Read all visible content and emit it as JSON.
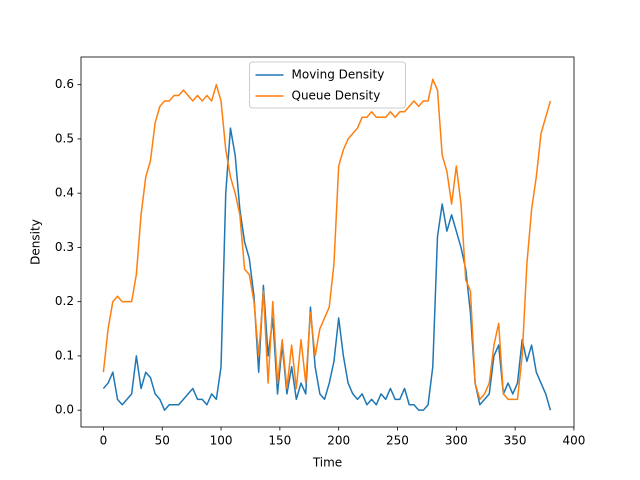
{
  "chart_data": {
    "type": "line",
    "x_label": "Time",
    "y_label": "Density",
    "x": [
      0,
      4,
      8,
      12,
      16,
      20,
      24,
      28,
      32,
      36,
      40,
      44,
      48,
      52,
      56,
      60,
      64,
      68,
      72,
      76,
      80,
      84,
      88,
      92,
      96,
      100,
      104,
      108,
      112,
      116,
      120,
      124,
      128,
      132,
      136,
      140,
      144,
      148,
      152,
      156,
      160,
      164,
      168,
      172,
      176,
      180,
      184,
      188,
      192,
      196,
      200,
      204,
      208,
      212,
      216,
      220,
      224,
      228,
      232,
      236,
      240,
      244,
      248,
      252,
      256,
      260,
      264,
      268,
      272,
      276,
      280,
      284,
      288,
      292,
      296,
      300,
      304,
      308,
      312,
      316,
      320,
      324,
      328,
      332,
      336,
      340,
      344,
      348,
      352,
      356,
      360,
      364,
      368,
      372,
      376,
      380
    ],
    "series": [
      {
        "name": "Moving Density",
        "color": "#1f77b4",
        "values": [
          0.04,
          0.05,
          0.07,
          0.02,
          0.01,
          0.02,
          0.03,
          0.1,
          0.04,
          0.07,
          0.06,
          0.03,
          0.02,
          0.0,
          0.01,
          0.01,
          0.01,
          0.02,
          0.03,
          0.04,
          0.02,
          0.02,
          0.01,
          0.03,
          0.02,
          0.08,
          0.4,
          0.52,
          0.47,
          0.37,
          0.31,
          0.28,
          0.21,
          0.07,
          0.23,
          0.1,
          0.17,
          0.03,
          0.12,
          0.03,
          0.08,
          0.02,
          0.05,
          0.03,
          0.19,
          0.08,
          0.03,
          0.02,
          0.05,
          0.09,
          0.17,
          0.1,
          0.05,
          0.03,
          0.02,
          0.03,
          0.01,
          0.02,
          0.01,
          0.03,
          0.02,
          0.04,
          0.02,
          0.02,
          0.04,
          0.01,
          0.01,
          0.0,
          0.0,
          0.01,
          0.08,
          0.32,
          0.38,
          0.33,
          0.36,
          0.33,
          0.3,
          0.26,
          0.18,
          0.05,
          0.01,
          0.02,
          0.03,
          0.1,
          0.12,
          0.03,
          0.05,
          0.03,
          0.05,
          0.13,
          0.09,
          0.12,
          0.07,
          0.05,
          0.03,
          0.0
        ]
      },
      {
        "name": "Queue Density",
        "color": "#ff7f0e",
        "values": [
          0.07,
          0.15,
          0.2,
          0.21,
          0.2,
          0.2,
          0.2,
          0.25,
          0.36,
          0.43,
          0.46,
          0.53,
          0.56,
          0.57,
          0.57,
          0.58,
          0.58,
          0.59,
          0.58,
          0.57,
          0.58,
          0.57,
          0.58,
          0.57,
          0.6,
          0.57,
          0.48,
          0.43,
          0.4,
          0.36,
          0.26,
          0.25,
          0.2,
          0.1,
          0.22,
          0.05,
          0.2,
          0.05,
          0.13,
          0.04,
          0.12,
          0.04,
          0.13,
          0.05,
          0.18,
          0.1,
          0.15,
          0.17,
          0.19,
          0.27,
          0.45,
          0.48,
          0.5,
          0.51,
          0.52,
          0.54,
          0.54,
          0.55,
          0.54,
          0.54,
          0.54,
          0.55,
          0.54,
          0.55,
          0.55,
          0.56,
          0.57,
          0.56,
          0.57,
          0.57,
          0.61,
          0.59,
          0.47,
          0.44,
          0.38,
          0.45,
          0.38,
          0.24,
          0.22,
          0.05,
          0.02,
          0.03,
          0.05,
          0.12,
          0.16,
          0.03,
          0.02,
          0.02,
          0.02,
          0.1,
          0.27,
          0.37,
          0.43,
          0.51,
          0.54,
          0.57
        ]
      }
    ],
    "xlim": [
      -19.05,
      400.05
    ],
    "ylim": [
      -0.031,
      0.651
    ],
    "xticks": [
      0,
      50,
      100,
      150,
      200,
      250,
      300,
      350,
      400
    ],
    "yticks": [
      {
        "value": 0,
        "label": "0.0"
      },
      0.1,
      0.2,
      0.3,
      0.4,
      0.5,
      0.6
    ],
    "grid": false,
    "legend": "upper center"
  }
}
